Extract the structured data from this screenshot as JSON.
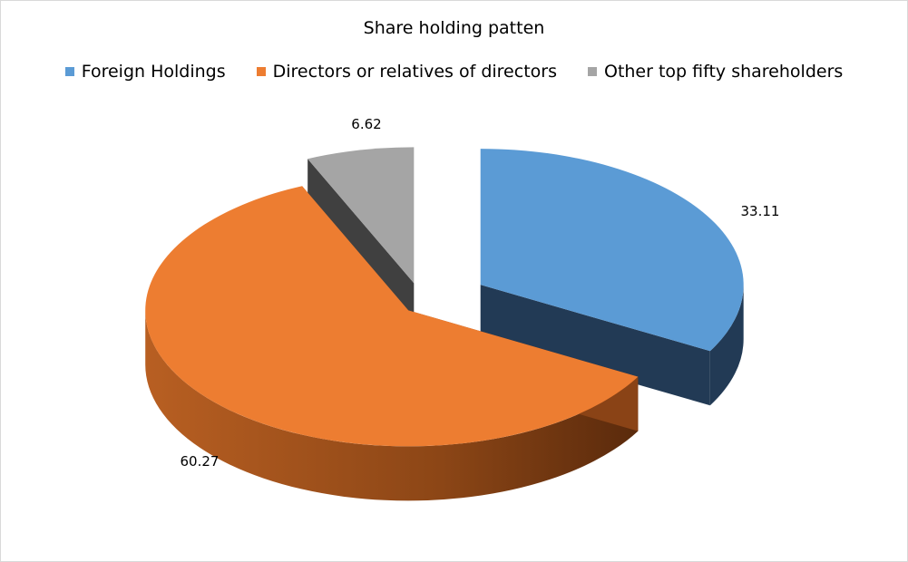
{
  "chart_data": {
    "type": "pie",
    "title": "Share holding patten",
    "legend_position": "top",
    "three_d": true,
    "exploded": true,
    "series": [
      {
        "name": "Foreign Holdings",
        "value": 33.11,
        "label": "33.11",
        "color": "#5b9bd5",
        "side_color": "#223a55"
      },
      {
        "name": "Directors or relatives of directors",
        "value": 60.27,
        "label": "60.27",
        "color": "#ed7d31",
        "side_color": "#8a4316"
      },
      {
        "name": "Other top fifty shareholders",
        "value": 6.62,
        "label": "6.62",
        "color": "#a5a5a5",
        "side_color": "#404040"
      }
    ]
  }
}
